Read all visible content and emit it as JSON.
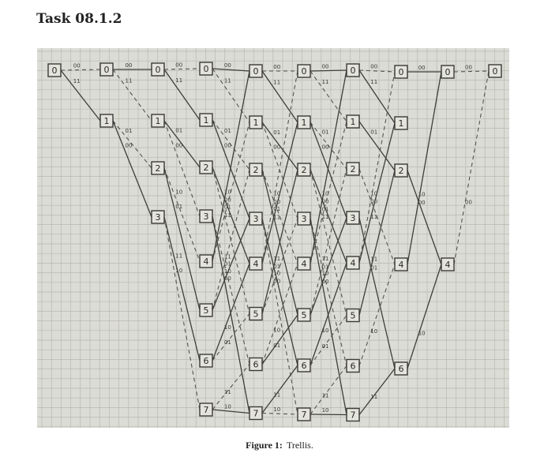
{
  "header": {
    "title": "Task 08.1.2"
  },
  "figure": {
    "caption_label": "Figure 1:",
    "caption_text": "Trellis.",
    "trellis": {
      "stages": 10,
      "states": [
        "0",
        "1",
        "2",
        "3",
        "4",
        "5",
        "6",
        "7"
      ],
      "edge_labels": [
        "00",
        "11",
        "10",
        "01"
      ]
    }
  },
  "colors": {
    "paper": "#dcdcd6",
    "grid": "#b9b9b2",
    "ink": "#3a3a38"
  }
}
